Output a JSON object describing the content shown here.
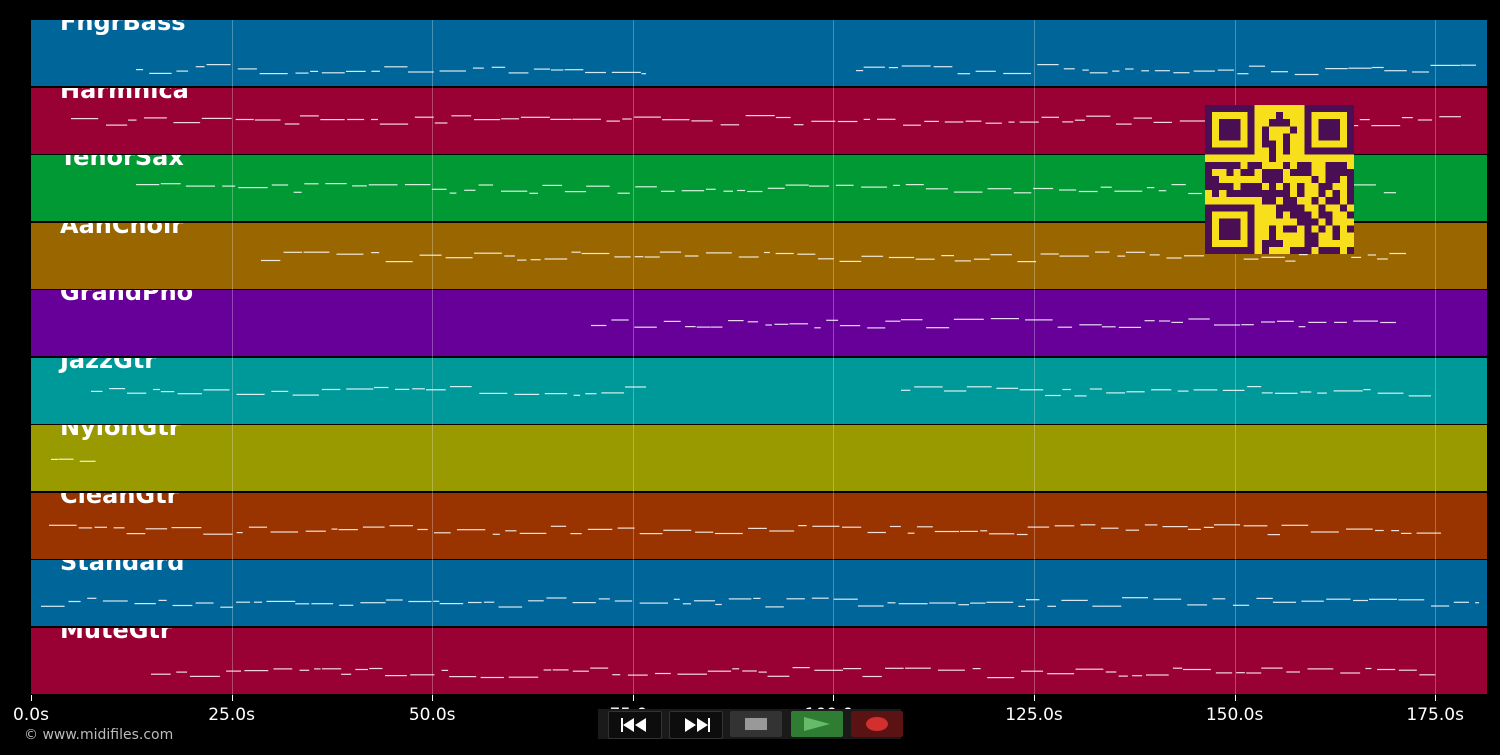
{
  "tracks": [
    {
      "name": "FngrBass",
      "color": "#006699"
    },
    {
      "name": "Harmnica",
      "color": "#990033"
    },
    {
      "name": "TenorSax",
      "color": "#009933"
    },
    {
      "name": "AahChoir",
      "color": "#996600"
    },
    {
      "name": "GrandPno",
      "color": "#660099"
    },
    {
      "name": "JazzGtr",
      "color": "#009999"
    },
    {
      "name": "NylonGtr",
      "color": "#999900"
    },
    {
      "name": "CleanGtr",
      "color": "#993300"
    },
    {
      "name": "Standard",
      "color": "#006699"
    },
    {
      "name": "MuteGtr",
      "color": "#990033"
    }
  ],
  "timeline": {
    "labels": [
      "0.0s",
      "25.0s",
      "50.0s",
      "75.0s",
      "100.0s",
      "125.0s",
      "150.0s",
      "175.0s"
    ]
  },
  "copyright": "© www.midifiles.com",
  "transport": {
    "rewind": "rewind-icon",
    "fast_forward": "fast-forward-icon",
    "stop": "stop-icon",
    "play": "play-icon",
    "record": "record-icon",
    "play_color": "#2e7d32",
    "record_color": "#d32f2f"
  }
}
